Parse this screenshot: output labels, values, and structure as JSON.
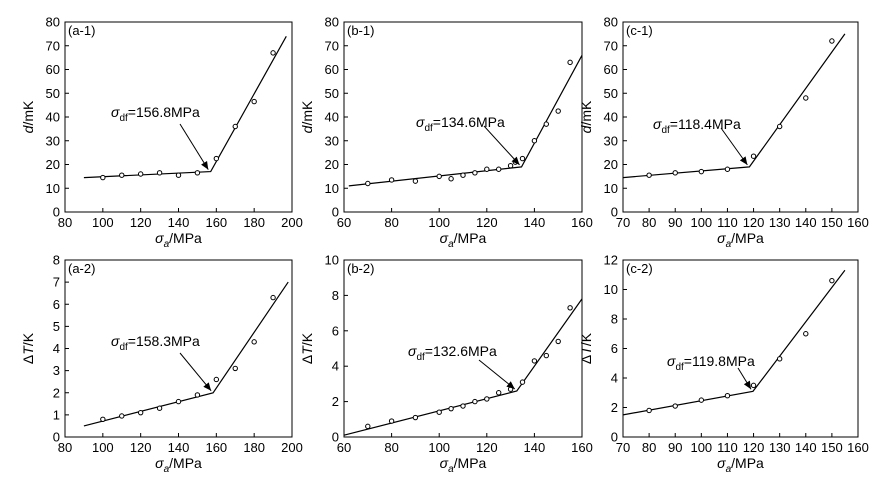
{
  "chart_data": [
    {
      "id": "a-1",
      "type": "scatter",
      "label": "(a-1)",
      "xlabel": "σa/MPa",
      "ylabel": "d/mK",
      "xlim": [
        80,
        200
      ],
      "xticks": [
        80,
        100,
        120,
        140,
        160,
        180,
        200
      ],
      "ylim": [
        0,
        80
      ],
      "yticks": [
        0,
        10,
        20,
        30,
        40,
        50,
        60,
        70,
        80
      ],
      "points": [
        [
          100,
          14.5
        ],
        [
          110,
          15.5
        ],
        [
          120,
          16
        ],
        [
          130,
          16.5
        ],
        [
          140,
          15.5
        ],
        [
          150,
          16.5
        ],
        [
          160,
          22.5
        ],
        [
          170,
          36
        ],
        [
          180,
          46.5
        ],
        [
          190,
          67
        ]
      ],
      "fit": [
        [
          90,
          14.5
        ],
        [
          157,
          17
        ],
        [
          197,
          74
        ]
      ],
      "annotation": {
        "text": "σdf=156.8MPa",
        "sym": "σ",
        "sub": "df",
        "value": "=156.8MPa",
        "x": 156.8,
        "y": 17
      }
    },
    {
      "id": "b-1",
      "type": "scatter",
      "label": "(b-1)",
      "xlabel": "σa/MPa",
      "ylabel": "d/mK",
      "xlim": [
        60,
        160
      ],
      "xticks": [
        60,
        80,
        100,
        120,
        140,
        160
      ],
      "ylim": [
        0,
        80
      ],
      "yticks": [
        0,
        10,
        20,
        30,
        40,
        50,
        60,
        70,
        80
      ],
      "points": [
        [
          70,
          12
        ],
        [
          80,
          13.5
        ],
        [
          90,
          13
        ],
        [
          100,
          15
        ],
        [
          105,
          14
        ],
        [
          110,
          15.5
        ],
        [
          115,
          16.5
        ],
        [
          120,
          18
        ],
        [
          125,
          18
        ],
        [
          130,
          19.5
        ],
        [
          132,
          21
        ],
        [
          135,
          22.5
        ],
        [
          140,
          30
        ],
        [
          145,
          37
        ],
        [
          150,
          42.5
        ],
        [
          155,
          63
        ]
      ],
      "fit": [
        [
          62,
          11
        ],
        [
          134.6,
          19
        ],
        [
          160,
          66
        ]
      ],
      "annotation": {
        "text": "σdf=134.6MPa",
        "sym": "σ",
        "sub": "df",
        "value": "=134.6MPa",
        "x": 134.6,
        "y": 19
      }
    },
    {
      "id": "c-1",
      "type": "scatter",
      "label": "(c-1)",
      "xlabel": "σa/MPa",
      "ylabel": "d/mK",
      "xlim": [
        70,
        160
      ],
      "xticks": [
        70,
        80,
        90,
        100,
        110,
        120,
        130,
        140,
        150,
        160
      ],
      "ylim": [
        0,
        80
      ],
      "yticks": [
        0,
        10,
        20,
        30,
        40,
        50,
        60,
        70,
        80
      ],
      "points": [
        [
          80,
          15.5
        ],
        [
          90,
          16.5
        ],
        [
          100,
          17
        ],
        [
          110,
          18
        ],
        [
          120,
          23.5
        ],
        [
          130,
          36
        ],
        [
          140,
          48
        ],
        [
          150,
          72
        ]
      ],
      "fit": [
        [
          70,
          14.5
        ],
        [
          118.4,
          19
        ],
        [
          155,
          75
        ]
      ],
      "annotation": {
        "text": "σdf=118.4MPa",
        "sym": "σ",
        "sub": "df",
        "value": "=118.4MPa",
        "x": 118.4,
        "y": 19
      }
    },
    {
      "id": "a-2",
      "type": "scatter",
      "label": "(a-2)",
      "xlabel": "σa/MPa",
      "ylabel": "ΔT/K",
      "xlim": [
        80,
        200
      ],
      "xticks": [
        80,
        100,
        120,
        140,
        160,
        180,
        200
      ],
      "ylim": [
        0,
        8
      ],
      "yticks": [
        0,
        1,
        2,
        3,
        4,
        5,
        6,
        7,
        8
      ],
      "points": [
        [
          100,
          0.8
        ],
        [
          110,
          0.95
        ],
        [
          120,
          1.1
        ],
        [
          130,
          1.3
        ],
        [
          140,
          1.6
        ],
        [
          150,
          1.9
        ],
        [
          160,
          2.6
        ],
        [
          170,
          3.1
        ],
        [
          180,
          4.3
        ],
        [
          190,
          6.3
        ]
      ],
      "fit": [
        [
          90,
          0.5
        ],
        [
          158.3,
          2
        ],
        [
          198,
          7
        ]
      ],
      "annotation": {
        "text": "σdf=158.3MPa",
        "sym": "σ",
        "sub": "df",
        "value": "=158.3MPa",
        "x": 158.3,
        "y": 2
      }
    },
    {
      "id": "b-2",
      "type": "scatter",
      "label": "(b-2)",
      "xlabel": "σa/MPa",
      "ylabel": "ΔT/K",
      "xlim": [
        60,
        160
      ],
      "xticks": [
        60,
        80,
        100,
        120,
        140,
        160
      ],
      "ylim": [
        0,
        10
      ],
      "yticks": [
        0,
        2,
        4,
        6,
        8,
        10
      ],
      "points": [
        [
          70,
          0.6
        ],
        [
          80,
          0.9
        ],
        [
          90,
          1.1
        ],
        [
          100,
          1.4
        ],
        [
          105,
          1.6
        ],
        [
          110,
          1.75
        ],
        [
          115,
          2
        ],
        [
          120,
          2.15
        ],
        [
          125,
          2.5
        ],
        [
          130,
          2.7
        ],
        [
          135,
          3.1
        ],
        [
          140,
          4.3
        ],
        [
          145,
          4.6
        ],
        [
          150,
          5.4
        ],
        [
          155,
          7.3
        ]
      ],
      "fit": [
        [
          60,
          0.1
        ],
        [
          132.6,
          2.6
        ],
        [
          160,
          7.8
        ]
      ],
      "annotation": {
        "text": "σdf=132.6MPa",
        "sym": "σ",
        "sub": "df",
        "value": "=132.6MPa",
        "x": 132.6,
        "y": 2.6
      }
    },
    {
      "id": "c-2",
      "type": "scatter",
      "label": "(c-2)",
      "xlabel": "σa/MPa",
      "ylabel": "ΔT/K",
      "xlim": [
        70,
        160
      ],
      "xticks": [
        70,
        80,
        90,
        100,
        110,
        120,
        130,
        140,
        150,
        160
      ],
      "ylim": [
        0,
        12
      ],
      "yticks": [
        0,
        2,
        4,
        6,
        8,
        10,
        12
      ],
      "points": [
        [
          80,
          1.8
        ],
        [
          90,
          2.1
        ],
        [
          100,
          2.5
        ],
        [
          110,
          2.8
        ],
        [
          120,
          3.5
        ],
        [
          130,
          5.3
        ],
        [
          140,
          7
        ],
        [
          150,
          10.6
        ]
      ],
      "fit": [
        [
          70,
          1.5
        ],
        [
          119.8,
          3.1
        ],
        [
          155,
          11.3
        ]
      ],
      "annotation": {
        "text": "σdf=119.8MPa",
        "sym": "σ",
        "sub": "df",
        "value": "=119.8MPa",
        "x": 119.8,
        "y": 3.1
      }
    }
  ]
}
